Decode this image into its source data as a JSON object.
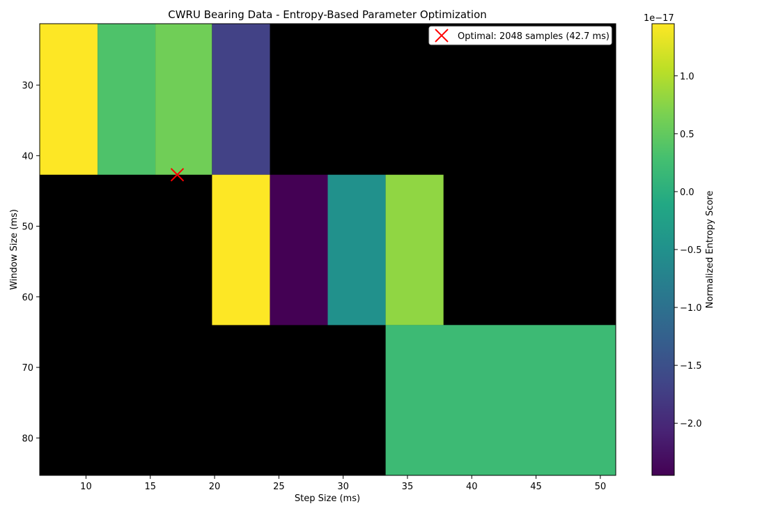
{
  "chart_data": {
    "type": "heatmap",
    "title": "CWRU Bearing Data - Entropy-Based Parameter Optimization",
    "xlabel": "Step Size (ms)",
    "ylabel": "Window Size (ms)",
    "xlim": [
      6.4,
      51.2
    ],
    "ylim": [
      85.3,
      21.3
    ],
    "x_ticks": [
      10,
      15,
      20,
      25,
      30,
      35,
      40,
      45,
      50
    ],
    "y_ticks": [
      30,
      40,
      50,
      60,
      70,
      80
    ],
    "background_color": "#000000",
    "colormap": "viridis",
    "cells": [
      {
        "x0": 6.4,
        "x1": 10.9,
        "y0": 21.3,
        "y1": 42.7,
        "value": 1.45
      },
      {
        "x0": 10.9,
        "x1": 15.4,
        "y0": 21.3,
        "y1": 42.7,
        "value": 0.35
      },
      {
        "x0": 15.4,
        "x1": 19.8,
        "y0": 21.3,
        "y1": 42.7,
        "value": 0.6
      },
      {
        "x0": 19.8,
        "x1": 24.3,
        "y0": 21.3,
        "y1": 42.7,
        "value": -1.7
      },
      {
        "x0": 19.8,
        "x1": 24.3,
        "y0": 42.7,
        "y1": 64.0,
        "value": 1.45
      },
      {
        "x0": 24.3,
        "x1": 28.8,
        "y0": 42.7,
        "y1": 64.0,
        "value": -2.45
      },
      {
        "x0": 28.8,
        "x1": 33.3,
        "y0": 42.7,
        "y1": 64.0,
        "value": -0.5
      },
      {
        "x0": 33.3,
        "x1": 37.8,
        "y0": 42.7,
        "y1": 64.0,
        "value": 0.8
      },
      {
        "x0": 33.3,
        "x1": 51.2,
        "y0": 64.0,
        "y1": 85.3,
        "value": 0.2
      }
    ],
    "marker": {
      "x": 17.1,
      "y": 42.7,
      "color": "#ff0000",
      "label": "Optimal: 2048 samples (42.7 ms)"
    },
    "legend_position": "top-right",
    "colorbar": {
      "label": "Normalized Entropy Score",
      "multiplier": "1e−17",
      "range": [
        -2.45,
        1.45
      ],
      "ticks": [
        1.0,
        0.5,
        0.0,
        -0.5,
        -1.0,
        -1.5,
        -2.0
      ],
      "tick_labels": [
        "1.0",
        "0.5",
        "0.0",
        "−0.5",
        "−1.0",
        "−1.5",
        "−2.0"
      ]
    }
  }
}
